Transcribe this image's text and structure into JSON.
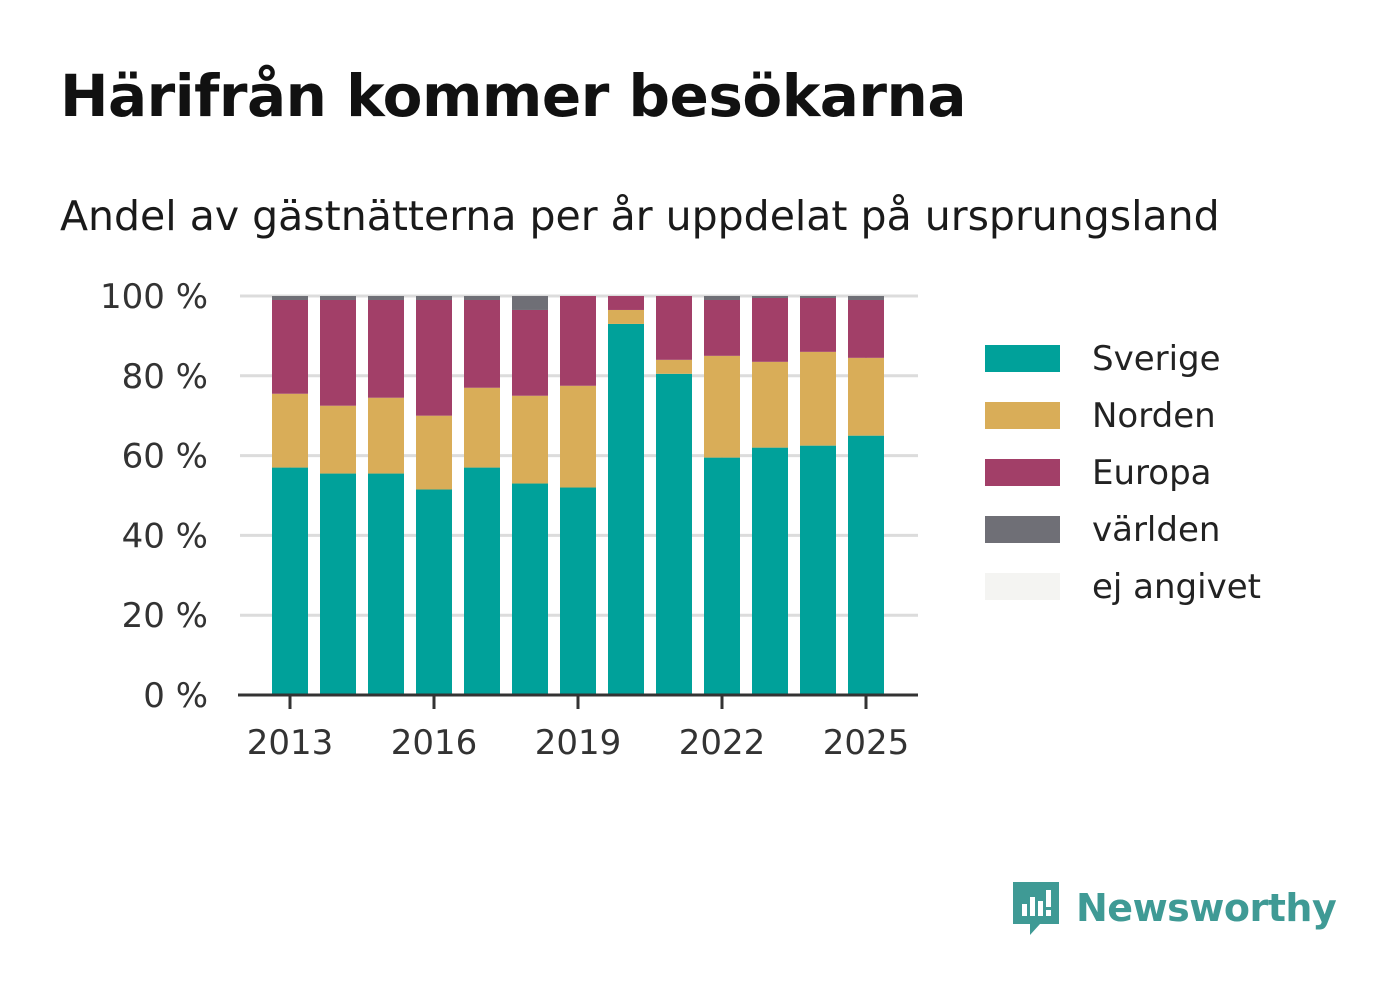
{
  "title": "Härifrån kommer besökarna",
  "subtitle": "Andel av gästnätterna per år uppdelat på ursprungsland",
  "brand": "Newsworthy",
  "chart_data": {
    "type": "bar",
    "stacked": true,
    "x": [
      2013,
      2014,
      2015,
      2016,
      2017,
      2018,
      2019,
      2020,
      2021,
      2022,
      2023,
      2024,
      2025
    ],
    "x_ticks": [
      "2013",
      "2016",
      "2019",
      "2022",
      "2025"
    ],
    "y_ticks": [
      "0 %",
      "20 %",
      "40 %",
      "60 %",
      "80 %",
      "100 %"
    ],
    "ylim": [
      0,
      100
    ],
    "grid": true,
    "legend_position": "right",
    "series": [
      {
        "name": "Sverige",
        "color": "#00a19a",
        "values": [
          57,
          55.5,
          55.5,
          51.5,
          57,
          53,
          52,
          93,
          80.5,
          59.5,
          62,
          62.5,
          65
        ]
      },
      {
        "name": "Norden",
        "color": "#d9ad58",
        "values": [
          18.5,
          17,
          19,
          18.5,
          20,
          22,
          25.5,
          3.5,
          3.5,
          25.5,
          21.5,
          23.5,
          19.5
        ]
      },
      {
        "name": "Europa",
        "color": "#a23f68",
        "values": [
          23.5,
          26.5,
          24.5,
          29,
          22,
          21.5,
          22.5,
          3.5,
          16,
          14,
          16,
          13.5,
          14.5
        ]
      },
      {
        "name": "världen",
        "color": "#6f6f76",
        "values": [
          1,
          1,
          1,
          1,
          1,
          3.5,
          0,
          0,
          0,
          1,
          0.5,
          0.5,
          1
        ]
      },
      {
        "name": "ej angivet",
        "color": "#f4f4f2",
        "values": [
          0,
          0,
          0,
          0,
          0,
          0,
          0,
          0,
          0,
          0,
          0,
          0,
          0
        ]
      }
    ]
  }
}
